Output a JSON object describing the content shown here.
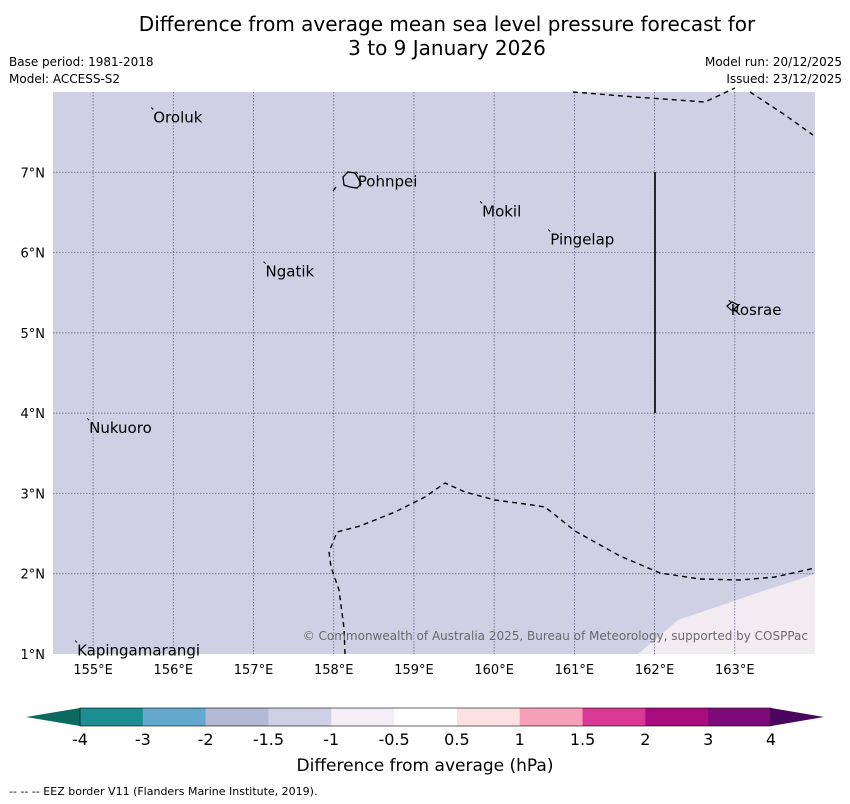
{
  "title_line1": "Difference from average mean sea level pressure forecast for",
  "title_line2": "3 to 9 January 2026",
  "meta_left": {
    "base_period": "Base period: 1981-2018",
    "model": "Model: ACCESS-S2"
  },
  "meta_right": {
    "model_run": "Model run: 20/12/2025",
    "issued": "Issued: 23/12/2025"
  },
  "map": {
    "lon_ticks": [
      "155°E",
      "156°E",
      "157°E",
      "158°E",
      "159°E",
      "160°E",
      "161°E",
      "162°E",
      "163°E"
    ],
    "lat_ticks": [
      "7°N",
      "6°N",
      "5°N",
      "4°N",
      "3°N",
      "2°N",
      "1°N"
    ],
    "places": [
      {
        "name": "Oroluk",
        "lon": 155.75,
        "lat": 7.72
      },
      {
        "name": "Pohnpei",
        "lon": 158.3,
        "lat": 6.92
      },
      {
        "name": "Mokil",
        "lon": 159.85,
        "lat": 6.55
      },
      {
        "name": "Ngatik",
        "lon": 157.15,
        "lat": 5.8
      },
      {
        "name": "Pingelap",
        "lon": 160.7,
        "lat": 6.2
      },
      {
        "name": "Kosrae",
        "lon": 162.95,
        "lat": 5.32
      },
      {
        "name": "Nukuoro",
        "lon": 154.95,
        "lat": 3.85
      },
      {
        "name": "Kapingamarangi",
        "lon": 154.8,
        "lat": 1.08
      }
    ],
    "copyright": "© Commonwealth of Australia 2025, Bureau of Meteorology, supported by COSPPac",
    "background_color": "#cfd0e4",
    "corner_color": "#f2ebf2"
  },
  "colorbar": {
    "ticks": [
      "-4",
      "-3",
      "-2",
      "-1.5",
      "-1",
      "-0.5",
      "0.5",
      "1",
      "1.5",
      "2",
      "3",
      "4"
    ],
    "colors": [
      "#1c8f93",
      "#64a8d0",
      "#b4b9d6",
      "#cfd0e6",
      "#f3eef6",
      "#ffffff",
      "#fde0e2",
      "#f5a0b8",
      "#d93895",
      "#aa0c80",
      "#7d0a78"
    ],
    "under_color": "#0b6a5e",
    "over_color": "#4a0560",
    "label": "Difference from average (hPa)"
  },
  "footer": "--  --  -- EEZ border V11 (Flanders Marine Institute, 2019)."
}
